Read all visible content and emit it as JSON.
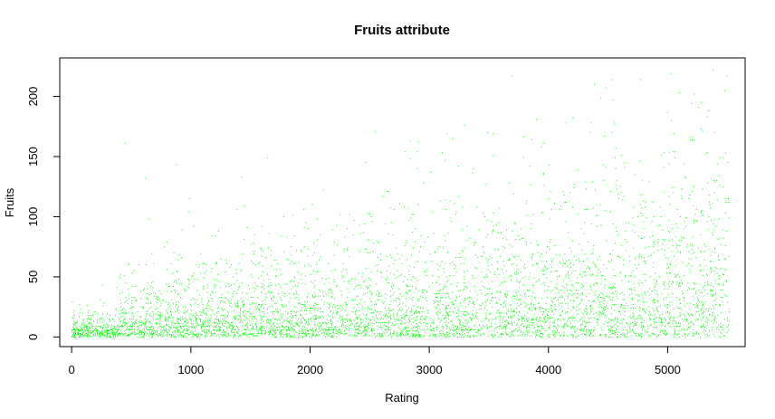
{
  "chart_data": {
    "type": "scatter",
    "title": "Fruits attribute",
    "xlabel": "Rating",
    "ylabel": "Fruits",
    "xlim": [
      -100,
      5650
    ],
    "ylim": [
      -8,
      232
    ],
    "x_ticks": [
      0,
      1000,
      2000,
      3000,
      4000,
      5000
    ],
    "y_ticks": [
      0,
      50,
      100,
      150,
      200
    ],
    "point_color": "#00ff00",
    "grid": false,
    "legend": "none",
    "n_points": 5500,
    "x_range_observed": [
      1,
      5520
    ],
    "y_range_observed": [
      0,
      222
    ],
    "points_sample": [
      {
        "x": 450,
        "y": 161
      },
      {
        "x": 620,
        "y": 132
      },
      {
        "x": 880,
        "y": 143
      },
      {
        "x": 2550,
        "y": 171
      },
      {
        "x": 2800,
        "y": 154
      },
      {
        "x": 3200,
        "y": 165
      },
      {
        "x": 3900,
        "y": 181
      },
      {
        "x": 4150,
        "y": 178
      },
      {
        "x": 4480,
        "y": 207
      },
      {
        "x": 5000,
        "y": 187
      },
      {
        "x": 5380,
        "y": 222
      },
      {
        "x": 5500,
        "y": 217
      },
      {
        "x": 5480,
        "y": 205
      }
    ]
  }
}
